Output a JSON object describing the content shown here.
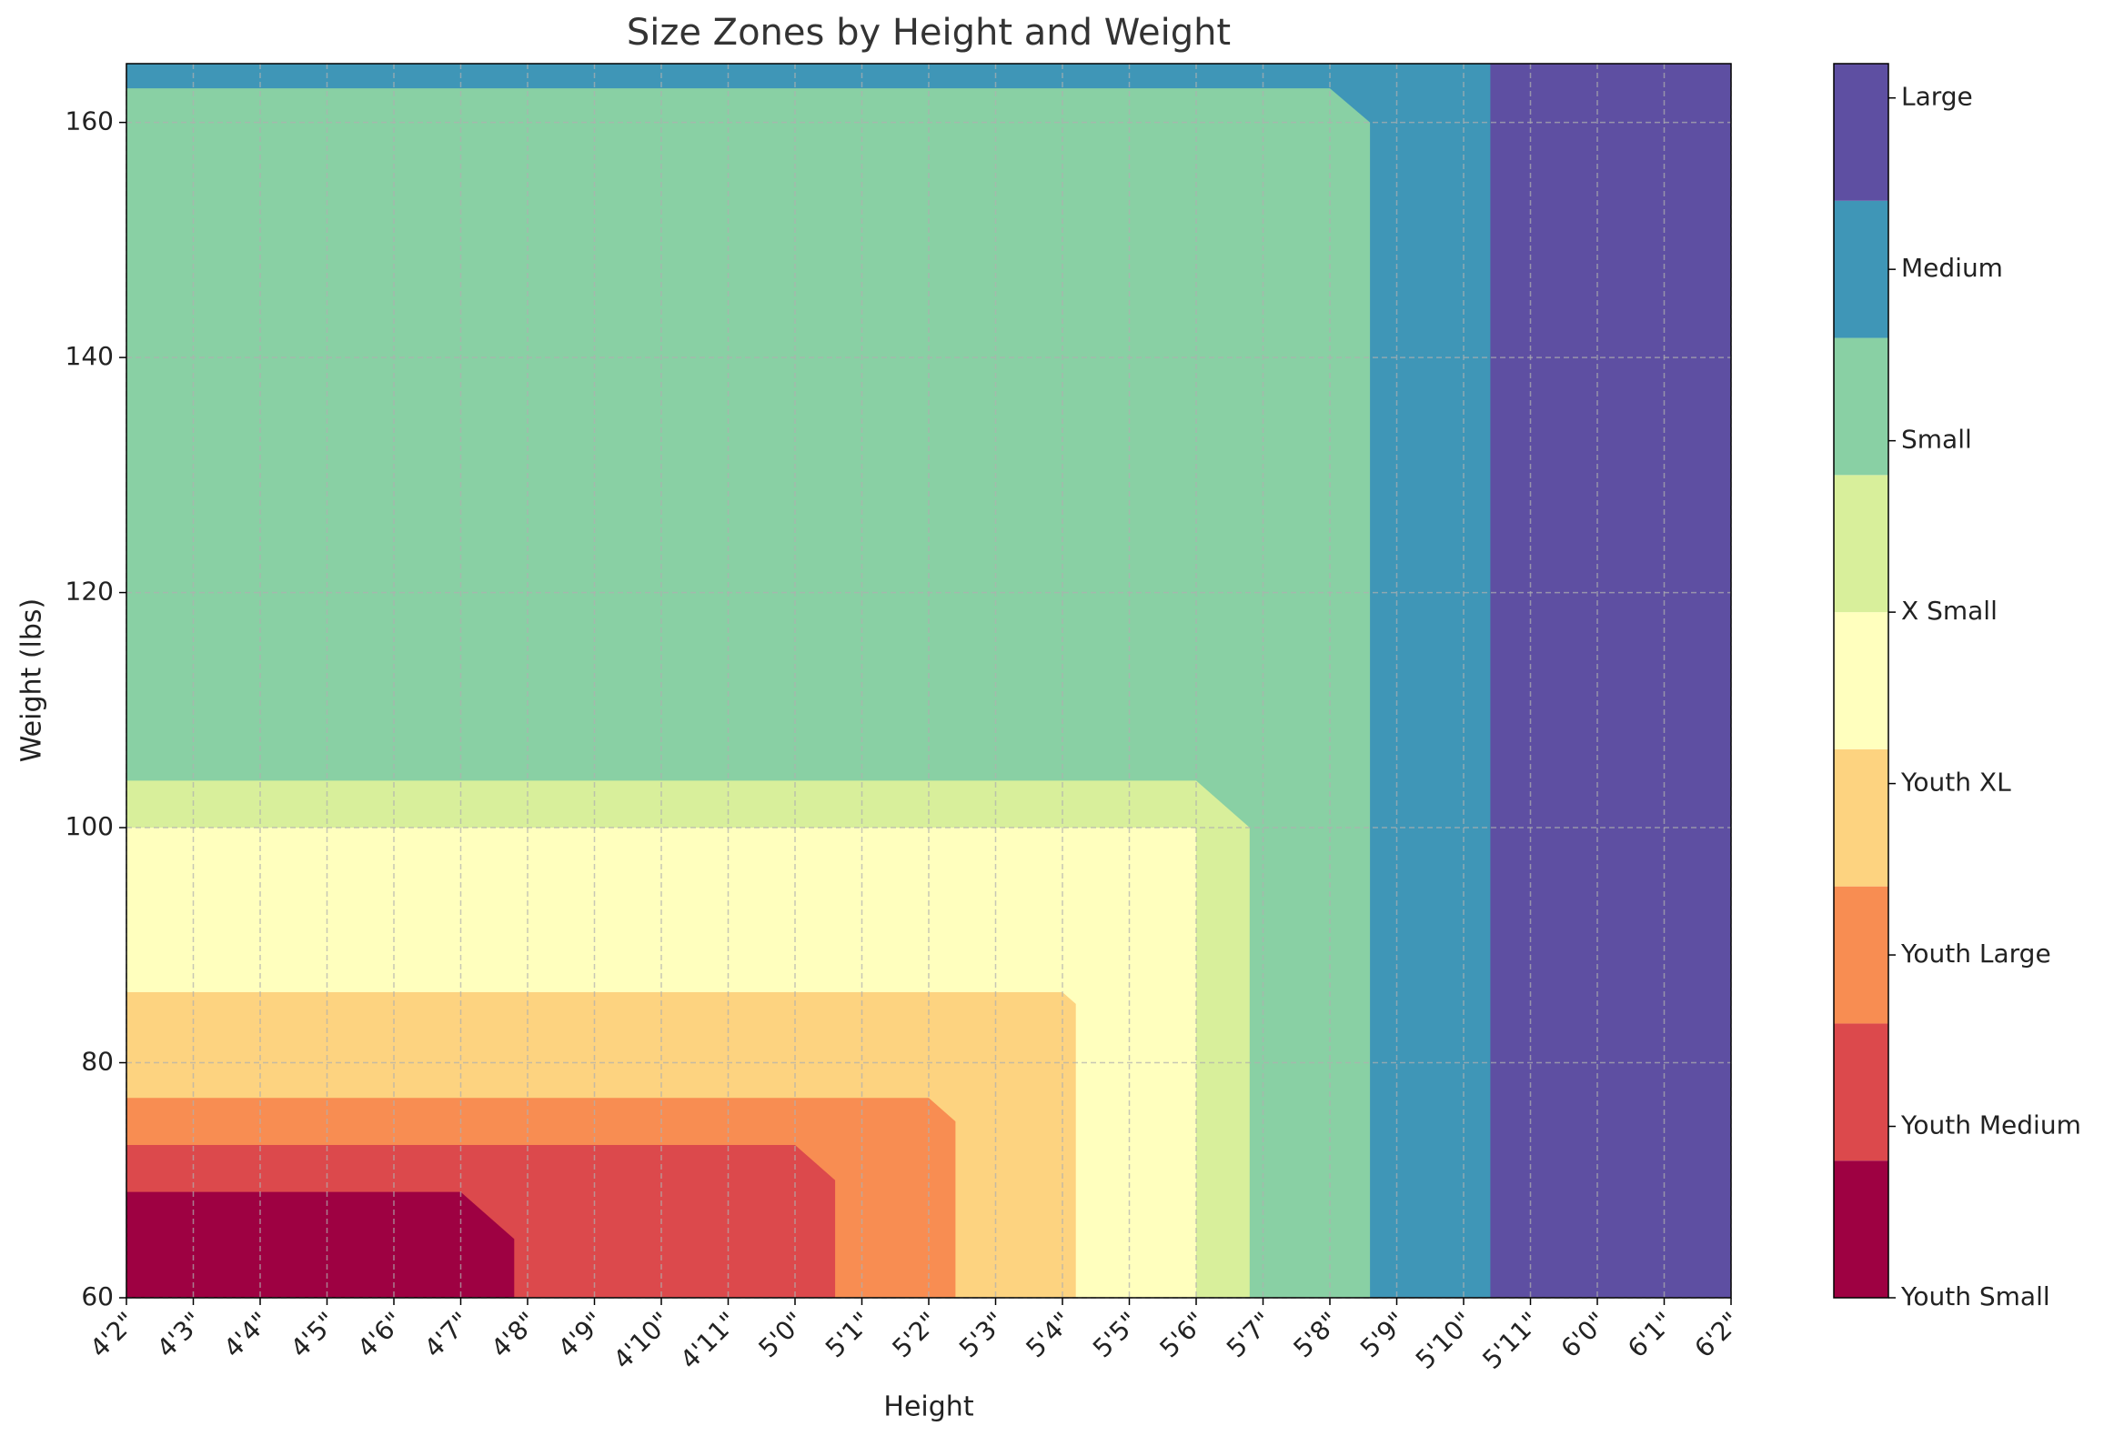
{
  "chart_data": {
    "type": "contourf",
    "title": "Size Zones by Height and Weight",
    "x_label": "Height",
    "y_label": "Weight (lbs)",
    "xlim": [
      50,
      74
    ],
    "ylim": [
      60,
      165
    ],
    "xticks": [
      {
        "value": 50,
        "label": "4'2\""
      },
      {
        "value": 51,
        "label": "4'3\""
      },
      {
        "value": 52,
        "label": "4'4\""
      },
      {
        "value": 53,
        "label": "4'5\""
      },
      {
        "value": 54,
        "label": "4'6\""
      },
      {
        "value": 55,
        "label": "4'7\""
      },
      {
        "value": 56,
        "label": "4'8\""
      },
      {
        "value": 57,
        "label": "4'9\""
      },
      {
        "value": 58,
        "label": "4'10\""
      },
      {
        "value": 59,
        "label": "4'11\""
      },
      {
        "value": 60,
        "label": "5'0\""
      },
      {
        "value": 61,
        "label": "5'1\""
      },
      {
        "value": 62,
        "label": "5'2\""
      },
      {
        "value": 63,
        "label": "5'3\""
      },
      {
        "value": 64,
        "label": "5'4\""
      },
      {
        "value": 65,
        "label": "5'5\""
      },
      {
        "value": 66,
        "label": "5'6\""
      },
      {
        "value": 67,
        "label": "5'7\""
      },
      {
        "value": 68,
        "label": "5'8\""
      },
      {
        "value": 69,
        "label": "5'9\""
      },
      {
        "value": 70,
        "label": "5'10\""
      },
      {
        "value": 71,
        "label": "5'11\""
      },
      {
        "value": 72,
        "label": "6'0\""
      },
      {
        "value": 73,
        "label": "6'1\""
      },
      {
        "value": 74,
        "label": "6'2\""
      }
    ],
    "yticks": [
      60,
      80,
      100,
      120,
      140,
      160
    ],
    "grid": true,
    "regions": [
      {
        "color": "#5e4fa2",
        "x": [
          50,
          50,
          74,
          74
        ],
        "y": [
          60,
          165,
          165,
          60
        ]
      },
      {
        "color": "#3f96b7",
        "x": [
          50,
          50,
          70.4,
          70.4
        ],
        "y": [
          60,
          165,
          165,
          60
        ]
      },
      {
        "color": "#89d0a4",
        "x": [
          50,
          50,
          68,
          68.6,
          68.6
        ],
        "y": [
          60,
          162.9,
          162.9,
          160,
          60
        ]
      },
      {
        "color": "#d8ef9b",
        "x": [
          50,
          50,
          66,
          66.8,
          66.8
        ],
        "y": [
          60,
          104,
          104,
          100,
          60
        ]
      },
      {
        "color": "#ffffbe",
        "x": [
          50,
          50,
          66,
          66
        ],
        "y": [
          60,
          100,
          100,
          60
        ]
      },
      {
        "color": "#fdd380",
        "x": [
          50,
          50,
          64,
          64.2,
          64.2
        ],
        "y": [
          60,
          86,
          86,
          85,
          60
        ]
      },
      {
        "color": "#f88d52",
        "x": [
          50,
          50,
          62,
          62.4,
          62.4
        ],
        "y": [
          60,
          77,
          77,
          75,
          60
        ]
      },
      {
        "color": "#dc494c",
        "x": [
          50,
          50,
          60,
          60.6,
          60.6
        ],
        "y": [
          60,
          73,
          73,
          70,
          60
        ]
      },
      {
        "color": "#9e0142",
        "x": [
          50,
          50,
          55,
          55.8,
          55.8
        ],
        "y": [
          60,
          69,
          69,
          65,
          60
        ]
      }
    ],
    "colorbar": {
      "levels": [
        0,
        0.8,
        1.6,
        2.4,
        3.2,
        4.0,
        4.8,
        5.6,
        6.4,
        7.2
      ],
      "colors": [
        "#9e0142",
        "#dc494c",
        "#f88d52",
        "#fdd380",
        "#ffffbe",
        "#d8ef9b",
        "#89d0a4",
        "#3f96b7",
        "#5e4fa2"
      ],
      "ticks": [
        {
          "value": 0,
          "label": "Youth Small"
        },
        {
          "value": 1,
          "label": "Youth Medium"
        },
        {
          "value": 2,
          "label": "Youth Large"
        },
        {
          "value": 3,
          "label": "Youth XL"
        },
        {
          "value": 4,
          "label": "X Small"
        },
        {
          "value": 5,
          "label": "Small"
        },
        {
          "value": 6,
          "label": "Medium"
        },
        {
          "value": 7,
          "label": "Large"
        }
      ]
    }
  }
}
